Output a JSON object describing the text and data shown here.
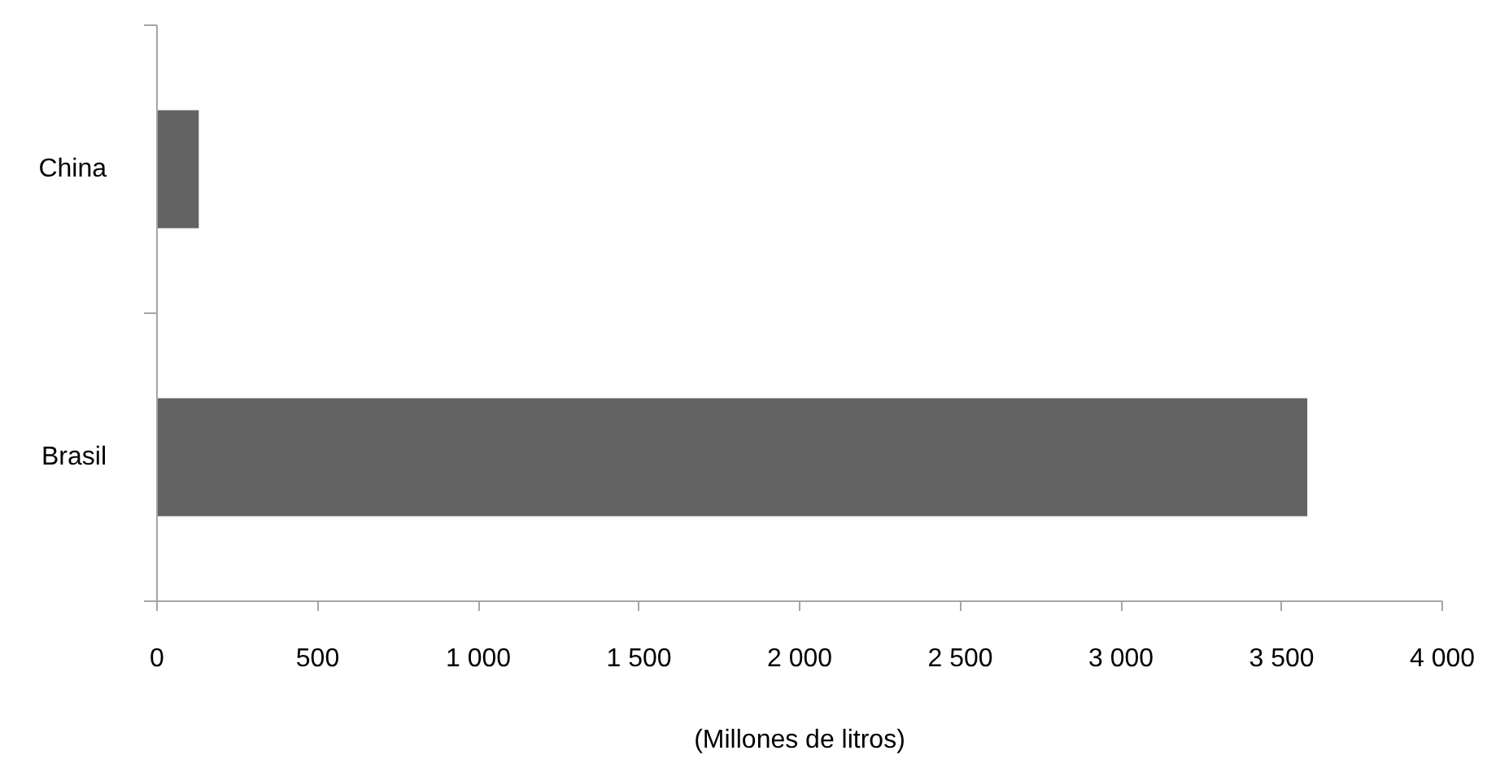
{
  "chart_data": {
    "type": "bar",
    "orientation": "horizontal",
    "categories": [
      "China",
      "Brasil"
    ],
    "values": [
      130,
      3580
    ],
    "color": "#636363",
    "xlabel": "(Millones de litros)",
    "xlim": [
      0,
      4000
    ],
    "xticks": [
      0,
      500,
      {
        "value": 1000,
        "label": "1 000"
      },
      {
        "value": 1500,
        "label": "1 500"
      },
      {
        "value": 2000,
        "label": "2 000"
      },
      {
        "value": 2500,
        "label": "2 500"
      },
      {
        "value": 3000,
        "label": "3 000"
      },
      {
        "value": 3500,
        "label": "3 500"
      },
      {
        "value": 4000,
        "label": "4 000"
      }
    ]
  }
}
